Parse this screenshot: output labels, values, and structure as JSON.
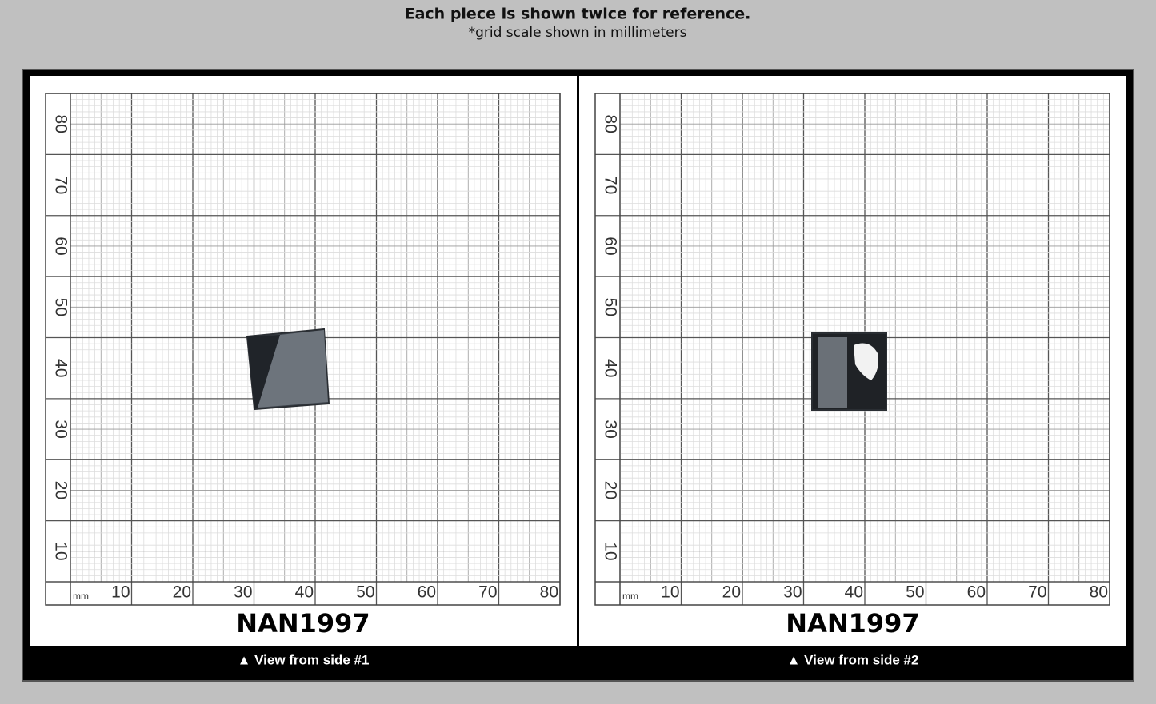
{
  "header": {
    "title": "Each piece is shown twice for reference.",
    "subtitle": "*grid scale shown in millimeters"
  },
  "grid": {
    "unit": "mm",
    "x_labels": [
      10,
      20,
      30,
      40,
      50,
      60,
      70,
      80
    ],
    "y_labels": [
      10,
      20,
      30,
      40,
      50,
      60,
      70,
      80
    ]
  },
  "panels": [
    {
      "label": "NAN1997",
      "caption": "▲ View from side #1"
    },
    {
      "label": "NAN1997",
      "caption": "▲ View from side #2"
    }
  ]
}
